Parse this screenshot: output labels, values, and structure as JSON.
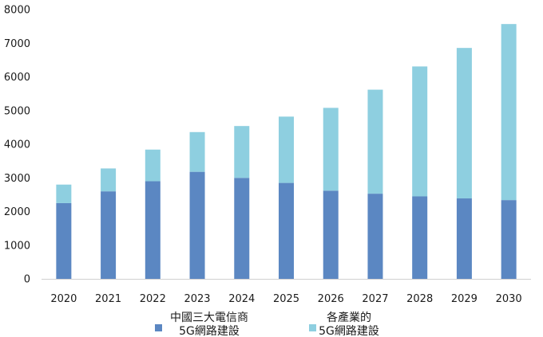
{
  "chart_data": {
    "type": "bar",
    "stacked": true,
    "categories": [
      "2020",
      "2021",
      "2022",
      "2023",
      "2024",
      "2025",
      "2026",
      "2027",
      "2028",
      "2029",
      "2030"
    ],
    "series": [
      {
        "name_lines": [
          "中國三大電信商",
          "5G網路建設"
        ],
        "color": "#5b87c2",
        "values": [
          2250,
          2600,
          2900,
          3180,
          3000,
          2850,
          2620,
          2530,
          2450,
          2390,
          2340
        ]
      },
      {
        "name_lines": [
          "各產業的",
          "5G網路建設"
        ],
        "color": "#8ecfe0",
        "values": [
          550,
          680,
          940,
          1180,
          1540,
          1970,
          2460,
          3090,
          3860,
          4470,
          5230
        ]
      }
    ],
    "yticks": [
      "0",
      "1000",
      "2000",
      "3000",
      "4000",
      "5000",
      "6000",
      "7000",
      "8000"
    ],
    "ylim": [
      0,
      8000
    ],
    "grid": false,
    "legend_position": "bottom"
  }
}
